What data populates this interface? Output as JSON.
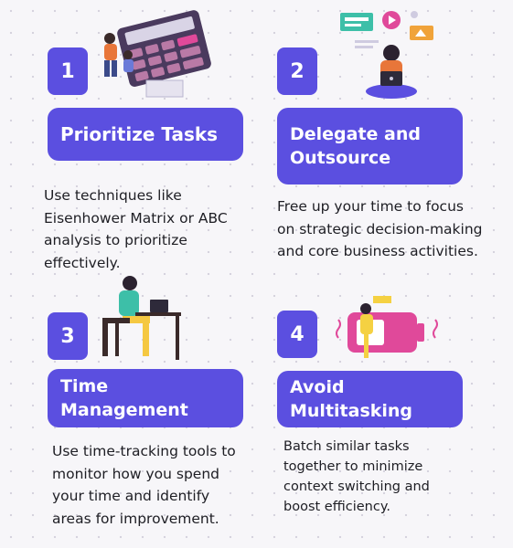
{
  "cards": [
    {
      "number": "1",
      "title": "Prioritize Tasks",
      "text": "Use techniques like Eisenhower Matrix or ABC analysis to prioritize effectively."
    },
    {
      "number": "2",
      "title": "Delegate and Outsource",
      "text": "Free up your time to focus on strategic decision-making and core business activities."
    },
    {
      "number": "3",
      "title": "Time Management",
      "text": "Use time-tracking tools to monitor how you spend your time and identify areas for improvement."
    },
    {
      "number": "4",
      "title": "Avoid Multitasking",
      "text": "Batch similar tasks together to minimize context switching and boost efficiency."
    }
  ],
  "colors": {
    "accent": "#5b4fe0",
    "pink": "#e0499a",
    "yellow": "#f5d142"
  },
  "icons": [
    "calculator-illustration",
    "online-learning-illustration",
    "person-at-desk-illustration",
    "battery-illustration"
  ]
}
